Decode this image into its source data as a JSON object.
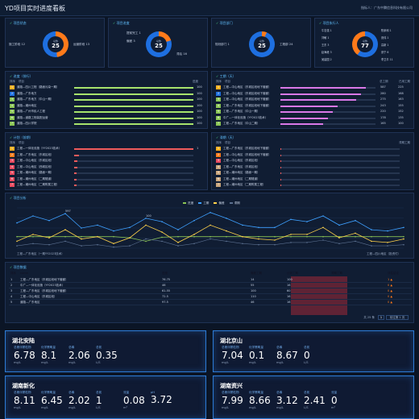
{
  "header": {
    "title": "YD项目实时进度看板",
    "owner": "指标人：广东中腾信息科技有限公司"
  },
  "kpi": [
    {
      "title": "项目状态",
      "center_label": "总数",
      "center_value": "25",
      "labels": [
        "施工阶段 12",
        "运营阶段 13"
      ],
      "colors": [
        "#ff7a1a",
        "#1e6fe0"
      ],
      "ratio": 0.48
    },
    {
      "title": "项目进度",
      "center_label": "总数",
      "center_value": "25",
      "labels": [
        "提前完工 1",
        "偏差 3",
        "滞后 16"
      ],
      "colors": [
        "#ff7a1a",
        "#1e6fe0"
      ],
      "ratio": 0.2
    },
    {
      "title": "项目部门",
      "center_label": "总数",
      "center_value": "25",
      "labels": [
        "规划部门 1",
        "工程部 24"
      ],
      "colors": [
        "#ff7a1a",
        "#1e6fe0"
      ],
      "ratio": 0.06
    },
    {
      "title": "项目执行人",
      "center_label": "总数",
      "center_value": "77",
      "labels": [
        "牛志强 1",
        "陈家和 1",
        "刘敏 1",
        "张伟 1",
        "王东 3",
        "高新 1",
        "赵海峰 3",
        "张宁 6",
        "吴建国 2",
        "李卫平 11"
      ],
      "colors": [
        "#1e6fe0",
        "#ff7a1a",
        "#4fdc8a",
        "#e84a5f",
        "#b86cff",
        "#ffd24a"
      ],
      "ratio": 0.6
    }
  ],
  "progress_panel": {
    "title": "进度（排行）",
    "headers": [
      "排序",
      "项目",
      "进度"
    ],
    "rows": [
      {
        "rank": "1",
        "name": "道路—四川工程（路面污染一期）",
        "pct": 1.0,
        "value": "100"
      },
      {
        "rank": "2",
        "name": "道路—广东地方",
        "pct": 1.0,
        "value": "100"
      },
      {
        "rank": "3",
        "name": "道路—广东地方（中山一期）",
        "pct": 1.0,
        "value": "100"
      },
      {
        "rank": "4",
        "name": "道路—潮州地区",
        "pct": 1.0,
        "value": "100"
      },
      {
        "rank": "5",
        "name": "道路—广州市民人工程",
        "pct": 1.0,
        "value": "100"
      },
      {
        "rank": "6",
        "name": "道路—道路工程装配运营",
        "pct": 1.0,
        "value": "100"
      },
      {
        "rank": "7",
        "name": "道路—四川学院",
        "pct": 1.0,
        "value": "100"
      }
    ],
    "rank_colors": [
      "#ffb020",
      "#1e6fe0",
      "#8ac455",
      "#8ac455",
      "#8ac455",
      "#8ac455",
      "#8ac455"
    ],
    "bar_color": "#a7e36c"
  },
  "duration_panel": {
    "title": "工期（天）",
    "headers": [
      "排序",
      "项目",
      "总工期",
      "已用工期"
    ],
    "rows": [
      {
        "rank": "1",
        "name": "工程—中山地区（东城区段地下管廊）",
        "pct": 0.9,
        "total": "587",
        "used": "225"
      },
      {
        "rank": "2",
        "name": "工程—中山地区（东城区段地下管廊）",
        "pct": 0.85,
        "total": "280",
        "used": "168"
      },
      {
        "rank": "3",
        "name": "工程—中山地区（东城区段地下管廊）",
        "pct": 0.8,
        "total": "275",
        "used": "163"
      },
      {
        "rank": "4",
        "name": "工程—广东地区（东城区段地下管廊）",
        "pct": 0.6,
        "total": "243",
        "used": "155"
      },
      {
        "rank": "5",
        "name": "工程—广东地区（中山一期）",
        "pct": 0.55,
        "total": "220",
        "used": "152"
      },
      {
        "rank": "6",
        "name": "中广—一体化设施（YY2023技术）",
        "pct": 0.5,
        "total": "178",
        "used": "135"
      },
      {
        "rank": "7",
        "name": "工程—广东地区（中山二期）",
        "pct": 0.45,
        "total": "165",
        "used": "100"
      }
    ],
    "bar_color": "#d978e8"
  },
  "plan_panel": {
    "title": "计划（前期）",
    "headers": [
      "排序",
      "项目"
    ],
    "rows": [
      {
        "rank": "1",
        "name": "工程—一体化设施（YY2023技术）",
        "pct": 1.0,
        "value": "1"
      },
      {
        "rank": "2",
        "name": "工程—广东地区（东城区段）",
        "pct": 0.04,
        "value": ""
      },
      {
        "rank": "3",
        "name": "工程—中山地区（东城区段）",
        "pct": 0.03,
        "value": ""
      },
      {
        "rank": "4",
        "name": "工程—中山地区（西城区段）",
        "pct": 0.03,
        "value": ""
      },
      {
        "rank": "5",
        "name": "工程—潮州地区（路面一期）",
        "pct": 0.02,
        "value": ""
      },
      {
        "rank": "6",
        "name": "工程—潮州地区（二期隧道）",
        "pct": 0.02,
        "value": ""
      },
      {
        "rank": "7",
        "name": "工程—潮州地区（二期附属工程）",
        "pct": 0.02,
        "value": ""
      }
    ],
    "rank_colors": [
      "#ffb020",
      "#ff7a1a",
      "#e84a5f",
      "#e84a5f",
      "#e84a5f",
      "#e84a5f",
      "#e84a5f"
    ],
    "bar_color": "#ef5b5b"
  },
  "delay_panel": {
    "title": "滞期（天）",
    "headers": [
      "排序",
      "项目",
      "滞期工期"
    ],
    "rows": [
      {
        "rank": "1",
        "name": "工程—广东地区（东城区段地下管廊）",
        "pct": 0.01,
        "value": ""
      },
      {
        "rank": "2",
        "name": "工程—中山地区（东城区段地下管廊）",
        "pct": 0.01,
        "value": ""
      },
      {
        "rank": "3",
        "name": "工程—中山地区（东城区段）",
        "pct": 0.01,
        "value": ""
      },
      {
        "rank": "4",
        "name": "工程—广东地区（东城区段）",
        "pct": 0.01,
        "value": ""
      },
      {
        "rank": "5",
        "name": "工程—潮州地区（路面一期）",
        "pct": 0.01,
        "value": ""
      },
      {
        "rank": "6",
        "name": "工程—潮州地区（二期隧道）",
        "pct": 0.01,
        "value": ""
      },
      {
        "rank": "7",
        "name": "工程—潮州地区（二期附属工程）",
        "pct": 0.01,
        "value": ""
      }
    ],
    "rank_colors": [
      "#ffb020",
      "#ff7a1a",
      "#e84a5f",
      "#c7a47b",
      "#c7a47b",
      "#c7a47b",
      "#c7a47b"
    ],
    "bar_color": "#ef5b5b"
  },
  "analysis": {
    "title": "项目分析",
    "legend": [
      "进度",
      "工期",
      "偏差",
      "滞期"
    ],
    "legend_colors": [
      "#8ac455",
      "#3ea0ff",
      "#ffd24a",
      "#5a6f8f"
    ],
    "left_caption": "工程—广东地区（一期YY2023技术）",
    "right_caption": "工程—四川地区（投资付）"
  },
  "chart_data": {
    "type": "line",
    "x": [
      1,
      2,
      3,
      4,
      5,
      6,
      7,
      8,
      9,
      10,
      11,
      12,
      13,
      14,
      15,
      16,
      17,
      18,
      19,
      20,
      21,
      22,
      23,
      24,
      25
    ],
    "series": [
      {
        "name": "进度",
        "color": "#8ac455",
        "values": [
          100,
          100,
          100,
          100,
          100,
          100,
          100,
          90,
          60,
          95,
          100,
          100,
          100,
          100,
          100,
          100,
          100,
          100,
          100,
          100,
          100,
          100,
          100,
          100,
          100
        ]
      },
      {
        "name": "工期",
        "color": "#3ea0ff",
        "values": [
          220,
          280,
          240,
          300,
          175,
          200,
          150,
          180,
          260,
          230,
          160,
          240,
          310,
          260,
          200,
          180,
          180,
          250,
          230,
          280,
          200,
          240,
          160,
          150,
          180
        ]
      },
      {
        "name": "偏差",
        "color": "#ffd24a",
        "values": [
          60,
          120,
          90,
          160,
          80,
          100,
          40,
          90,
          200,
          140,
          50,
          120,
          200,
          150,
          100,
          80,
          70,
          120,
          120,
          180,
          90,
          130,
          60,
          50,
          80
        ]
      },
      {
        "name": "滞期",
        "color": "#5a6f8f",
        "values": [
          20,
          40,
          30,
          60,
          20,
          30,
          10,
          20,
          80,
          60,
          20,
          40,
          80,
          60,
          40,
          30,
          30,
          50,
          50,
          70,
          40,
          60,
          20,
          20,
          30
        ]
      }
    ],
    "ylim": [
      0,
      350
    ],
    "labels": [
      "597",
      "100"
    ]
  },
  "table": {
    "title": "项目数据",
    "headers": [
      "排序",
      "name",
      "进度",
      "偏差工期",
      "计划工期",
      "滞期工期",
      "评估结论"
    ],
    "rows": [
      {
        "rank": "1",
        "name": "工程—广东地区（东城区段地下管廊）",
        "progress": "76.75",
        "dev": "14",
        "plan": "100",
        "delay": "",
        "status": "1 ▲"
      },
      {
        "rank": "2",
        "name": "中广—一体化设施（YY2023技术）",
        "progress": "46",
        "dev": "55",
        "plan": "16",
        "delay": "",
        "status": "0 ▲"
      },
      {
        "rank": "3",
        "name": "工程—广东地区（东城区段地下管廊）",
        "progress": "61.55",
        "dev": "100",
        "plan": "60",
        "delay": "",
        "status": "0 ▲"
      },
      {
        "rank": "4",
        "name": "工程—中山地区（东城区段）",
        "progress": "72.5",
        "dev": "110",
        "plan": "16",
        "delay": "",
        "status": "0 ▲"
      },
      {
        "rank": "5",
        "name": "道路—广东地区",
        "progress": "97.5",
        "dev": "46",
        "plan": "16",
        "delay": "",
        "status": "0 ▲"
      }
    ],
    "pagination": {
      "total": "共 25 条",
      "page": "1",
      "jump": "前往第 1 页"
    }
  },
  "stations": [
    {
      "name": "湖北安陆",
      "metrics": [
        {
          "label": "总悬浮颗粒物",
          "value": "6.78",
          "unit": "mg/L"
        },
        {
          "label": "化学需氧量",
          "value": "8.1",
          "unit": "mg/L"
        },
        {
          "label": "总磷",
          "value": "2.06",
          "unit": "mg/L"
        },
        {
          "label": "总氮",
          "value": "0.35",
          "unit": "L/S"
        }
      ]
    },
    {
      "name": "湖北京山",
      "metrics": [
        {
          "label": "总悬浮颗粒物",
          "value": "7.04",
          "unit": "mg/L"
        },
        {
          "label": "化学需氧量",
          "value": "0.1",
          "unit": "mg/L"
        },
        {
          "label": "总磷",
          "value": "8.67",
          "unit": "mg/L"
        },
        {
          "label": "总氮",
          "value": "0",
          "unit": "L/S"
        }
      ]
    },
    {
      "name": "湖南新化",
      "metrics": [
        {
          "label": "总悬浮颗粒物",
          "value": "8.11",
          "unit": "mg/L"
        },
        {
          "label": "化学需氧量",
          "value": "6.45",
          "unit": "mg/L"
        },
        {
          "label": "总磷",
          "value": "2.02",
          "unit": "mg/L"
        },
        {
          "label": "总氮",
          "value": "1",
          "unit": "L/S"
        },
        {
          "label": "流量",
          "value": "0.08",
          "unit": "m³"
        },
        {
          "label": "pH",
          "value": "3.72",
          "unit": ""
        }
      ]
    },
    {
      "name": "湖南资兴",
      "metrics": [
        {
          "label": "总悬浮颗粒物",
          "value": "7.99",
          "unit": "mg/L"
        },
        {
          "label": "化学需氧量",
          "value": "8.66",
          "unit": "mg/L"
        },
        {
          "label": "总磷",
          "value": "3.12",
          "unit": "mg/L"
        },
        {
          "label": "总氮",
          "value": "2.41",
          "unit": "L/S"
        },
        {
          "label": "流量",
          "value": "0",
          "unit": "m³"
        }
      ]
    }
  ]
}
